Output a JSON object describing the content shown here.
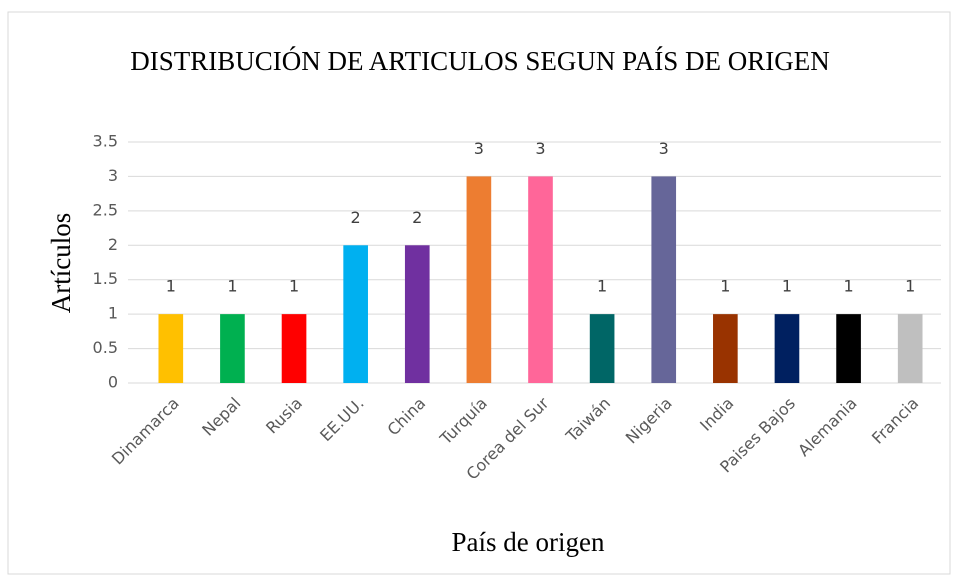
{
  "chart_data": {
    "type": "bar",
    "title": "DISTRIBUCIÓN DE ARTICULOS SEGUN PAÍS DE ORIGEN",
    "x_label": "País de origen",
    "y_label": "Artículos",
    "categories": [
      "Dinamarca",
      "Nepal",
      "Rusia",
      "EE.UU.",
      "China",
      "Turquía",
      "Corea del Sur",
      "Taiwán",
      "Nigeria",
      "India",
      "Paises Bajos",
      "Alemania",
      "Francia"
    ],
    "values": [
      1,
      1,
      1,
      2,
      2,
      3,
      3,
      1,
      3,
      1,
      1,
      1,
      1
    ],
    "colors": [
      "#FFC000",
      "#00B050",
      "#FF0000",
      "#00B0F0",
      "#7030A0",
      "#ED7D31",
      "#FF6699",
      "#006666",
      "#666699",
      "#993300",
      "#002060",
      "#000000",
      "#BFBFBF"
    ],
    "ylim": [
      0,
      3.5
    ],
    "yticks": [
      0,
      0.5,
      1,
      1.5,
      2,
      2.5,
      3,
      3.5
    ],
    "grid": true
  }
}
